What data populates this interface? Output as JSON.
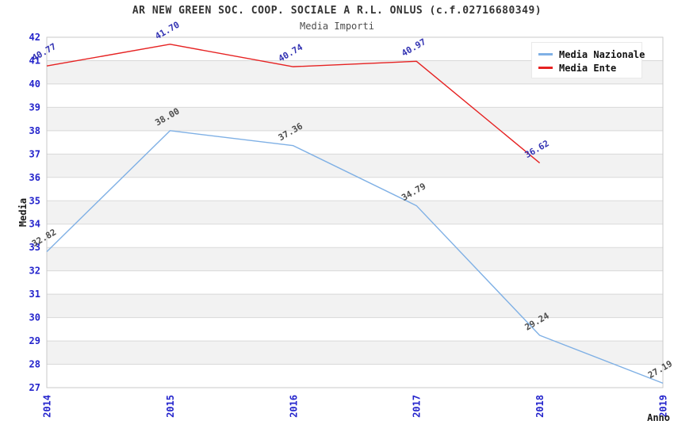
{
  "header": {
    "title": "AR NEW GREEN SOC. COOP. SOCIALE A R.L. ONLUS (c.f.02716680349)",
    "subtitle": "Media Importi"
  },
  "chart_data": {
    "type": "line",
    "title": "AR NEW GREEN SOC. COOP. SOCIALE A R.L. ONLUS (c.f.02716680349)",
    "subtitle": "Media Importi",
    "xlabel": "Anno",
    "ylabel": "Media",
    "x": [
      2014,
      2015,
      2016,
      2017,
      2018,
      2019
    ],
    "series": [
      {
        "name": "Media Nazionale",
        "color": "#7FB0E5",
        "label_color": "#4d4d4d",
        "values": [
          32.82,
          38.0,
          37.36,
          34.79,
          29.24,
          27.19
        ]
      },
      {
        "name": "Media Ente",
        "color": "#E62222",
        "label_color": "#3333B3",
        "values": [
          40.77,
          41.7,
          40.74,
          40.97,
          36.62,
          null
        ]
      }
    ],
    "ylim": [
      27,
      42
    ],
    "ytick_step": 1,
    "grid": "horizontal",
    "band_fill": "alternating",
    "legend_position": "top-right",
    "styles": {
      "tick_label_color": "#2424cc",
      "band_color": "#f2f2f2",
      "gridline_color": "#d9d9d9",
      "border_color": "#c9c9c9",
      "axis_label_color": "#1a1a1a"
    }
  }
}
